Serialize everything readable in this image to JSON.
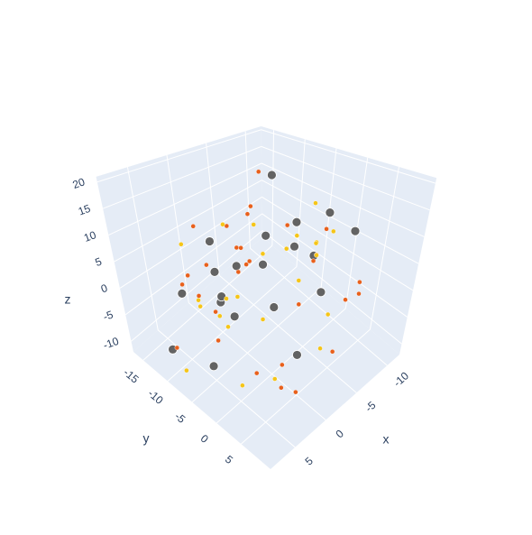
{
  "chart_data": {
    "type": "scatter3d",
    "x_label": "x",
    "y_label": "y",
    "z_label": "z",
    "xlim": [
      -12,
      9
    ],
    "ylim": [
      -17,
      11
    ],
    "zlim": [
      -12,
      21
    ],
    "xticks": [
      -10,
      -5,
      0,
      5
    ],
    "yticks": [
      -15,
      -10,
      -5,
      0,
      5
    ],
    "zticks": [
      -10,
      -5,
      0,
      5,
      10,
      15,
      20
    ],
    "grid": true,
    "series": [
      {
        "color": "#636363",
        "size": 5,
        "x": [
          -3,
          2,
          -6,
          4,
          -1,
          5,
          -8,
          0,
          3,
          -4,
          6,
          -2,
          1,
          -7,
          -9,
          2,
          -5,
          4,
          7,
          -3
        ],
        "y": [
          -5,
          -8,
          2,
          -12,
          -3,
          0,
          -6,
          -10,
          4,
          -1,
          -4,
          -14,
          6,
          -9,
          3,
          -7,
          1,
          -2,
          -11,
          5
        ],
        "z": [
          8,
          3,
          14,
          -2,
          5,
          10,
          1,
          -6,
          4,
          12,
          -8,
          2,
          -4,
          16,
          9,
          -1,
          6,
          0,
          -9,
          3
        ]
      },
      {
        "color": "#e8601c",
        "size": 2.5,
        "x": [
          -10,
          4,
          -2,
          6,
          1,
          -6,
          8,
          -4,
          3,
          -8,
          0,
          5,
          -1,
          7,
          -5,
          2,
          -9,
          -3,
          6,
          1,
          -7,
          4,
          -2,
          8,
          -11,
          0,
          3,
          -6,
          5,
          -4
        ],
        "y": [
          -15,
          2,
          -9,
          -4,
          6,
          -12,
          0,
          4,
          -7,
          -2,
          -14,
          8,
          -5,
          -10,
          1,
          -3,
          5,
          -8,
          3,
          -13,
          7,
          -1,
          9,
          -6,
          -11,
          2,
          -4,
          6,
          -9,
          0
        ],
        "z": [
          11,
          -7,
          4,
          9,
          -10,
          6,
          0,
          13,
          -3,
          2,
          7,
          -5,
          15,
          -8,
          5,
          10,
          -2,
          1,
          12,
          -6,
          3,
          8,
          -4,
          6,
          -1,
          -9,
          14,
          0,
          4,
          -3
        ]
      },
      {
        "color": "#f5c518",
        "size": 2.5,
        "x": [
          -5,
          3,
          -1,
          6,
          -8,
          2,
          -3,
          5,
          -10,
          1,
          7,
          -6,
          0,
          4,
          -2,
          8,
          -7,
          3,
          -4,
          6,
          -9,
          1,
          -1,
          5
        ],
        "y": [
          4,
          -10,
          -3,
          -6,
          1,
          7,
          -13,
          0,
          -8,
          -2,
          3,
          -5,
          9,
          -11,
          5,
          -7,
          -1,
          2,
          -14,
          8,
          -4,
          -9,
          6,
          -2
        ],
        "z": [
          12,
          -4,
          7,
          2,
          -8,
          9,
          -11,
          5,
          0,
          14,
          -6,
          3,
          -2,
          8,
          10,
          -9,
          6,
          1,
          4,
          -3,
          11,
          -7,
          13,
          -1
        ]
      }
    ]
  }
}
